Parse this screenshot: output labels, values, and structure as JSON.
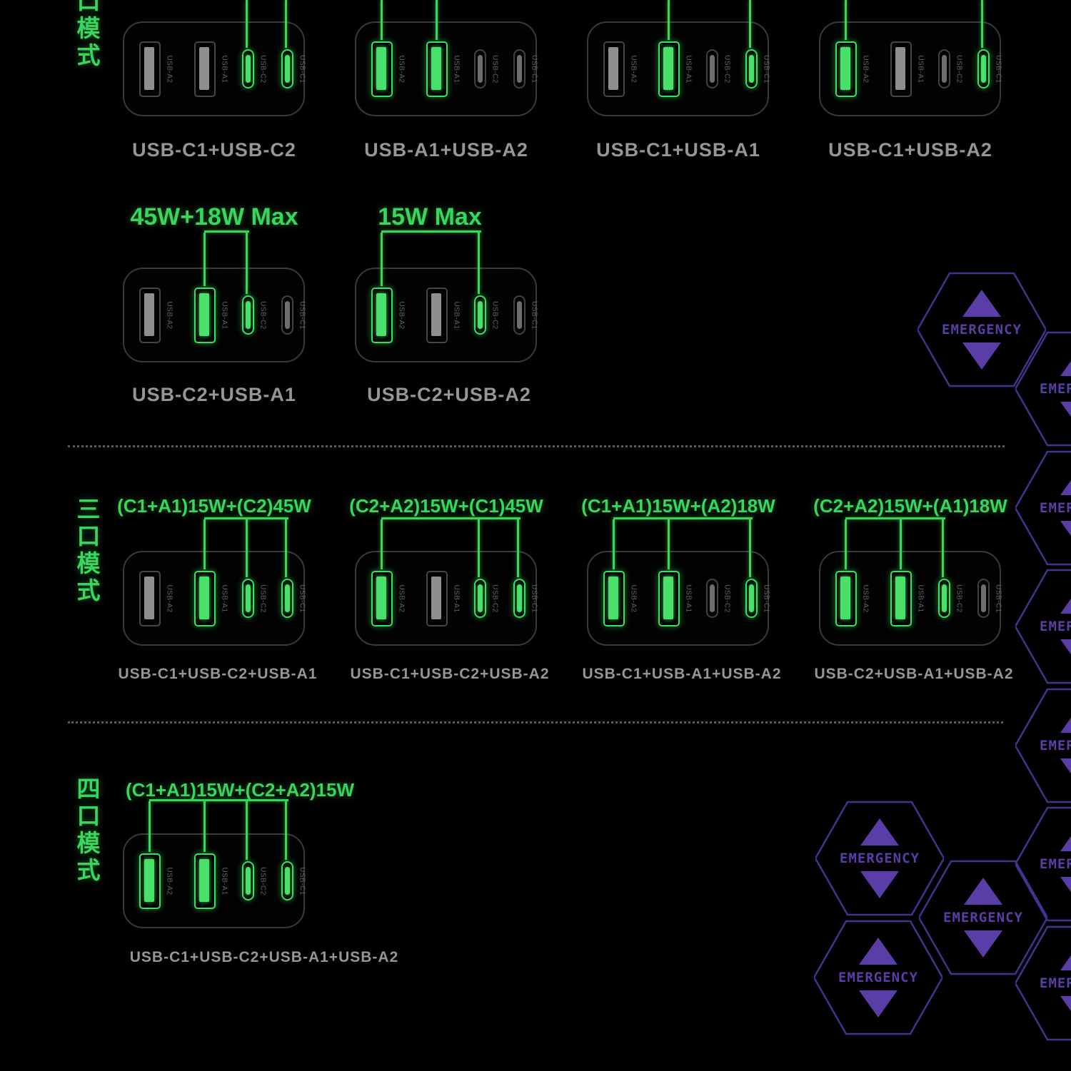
{
  "colors": {
    "background": "#000000",
    "green": "#35d75c",
    "purple_outline": "#43338c",
    "purple_fill": "#5a3da6",
    "label_gray": "#969696",
    "port_inactive_fill": "#8f8f8f"
  },
  "port_labels": {
    "A2": "USB-A2",
    "A1": "USB-A1",
    "C2": "USB-C2",
    "C1": "USB-C1"
  },
  "hexagon_label": "EMERGENCY",
  "section_dual": {
    "side_title": "口模式",
    "row1": [
      {
        "bottom_label": "USB-C1+USB-C2",
        "active": [
          "C2",
          "C1"
        ]
      },
      {
        "bottom_label": "USB-A1+USB-A2",
        "active": [
          "A2",
          "A1"
        ]
      },
      {
        "bottom_label": "USB-C1+USB-A1",
        "active": [
          "A1",
          "C1"
        ]
      },
      {
        "bottom_label": "USB-C1+USB-A2",
        "active": [
          "A2",
          "C1"
        ]
      }
    ],
    "row2": [
      {
        "top_label": "45W+18W Max",
        "bottom_label": "USB-C2+USB-A1",
        "active": [
          "A1",
          "C2"
        ]
      },
      {
        "top_label": "15W Max",
        "bottom_label": "USB-C2+USB-A2",
        "active": [
          "A2",
          "C2"
        ]
      }
    ]
  },
  "section_triple": {
    "side_title": "三口模式",
    "chargers": [
      {
        "top_label": "(C1+A1)15W+(C2)45W",
        "bottom_label": "USB-C1+USB-C2+USB-A1",
        "active": [
          "A1",
          "C2",
          "C1"
        ]
      },
      {
        "top_label": "(C2+A2)15W+(C1)45W",
        "bottom_label": "USB-C1+USB-C2+USB-A2",
        "active": [
          "A2",
          "C2",
          "C1"
        ]
      },
      {
        "top_label": "(C1+A1)15W+(A2)18W",
        "bottom_label": "USB-C1+USB-A1+USB-A2",
        "active": [
          "A2",
          "A1",
          "C1"
        ]
      },
      {
        "top_label": "(C2+A2)15W+(A1)18W",
        "bottom_label": "USB-C2+USB-A1+USB-A2",
        "active": [
          "A2",
          "A1",
          "C2"
        ]
      }
    ]
  },
  "section_quad": {
    "side_title": "四口模式",
    "chargers": [
      {
        "top_label": "(C1+A1)15W+(C2+A2)15W",
        "bottom_label": "USB-C1+USB-C2+USB-A1+USB-A2",
        "active": [
          "A2",
          "A1",
          "C2",
          "C1"
        ]
      }
    ]
  }
}
